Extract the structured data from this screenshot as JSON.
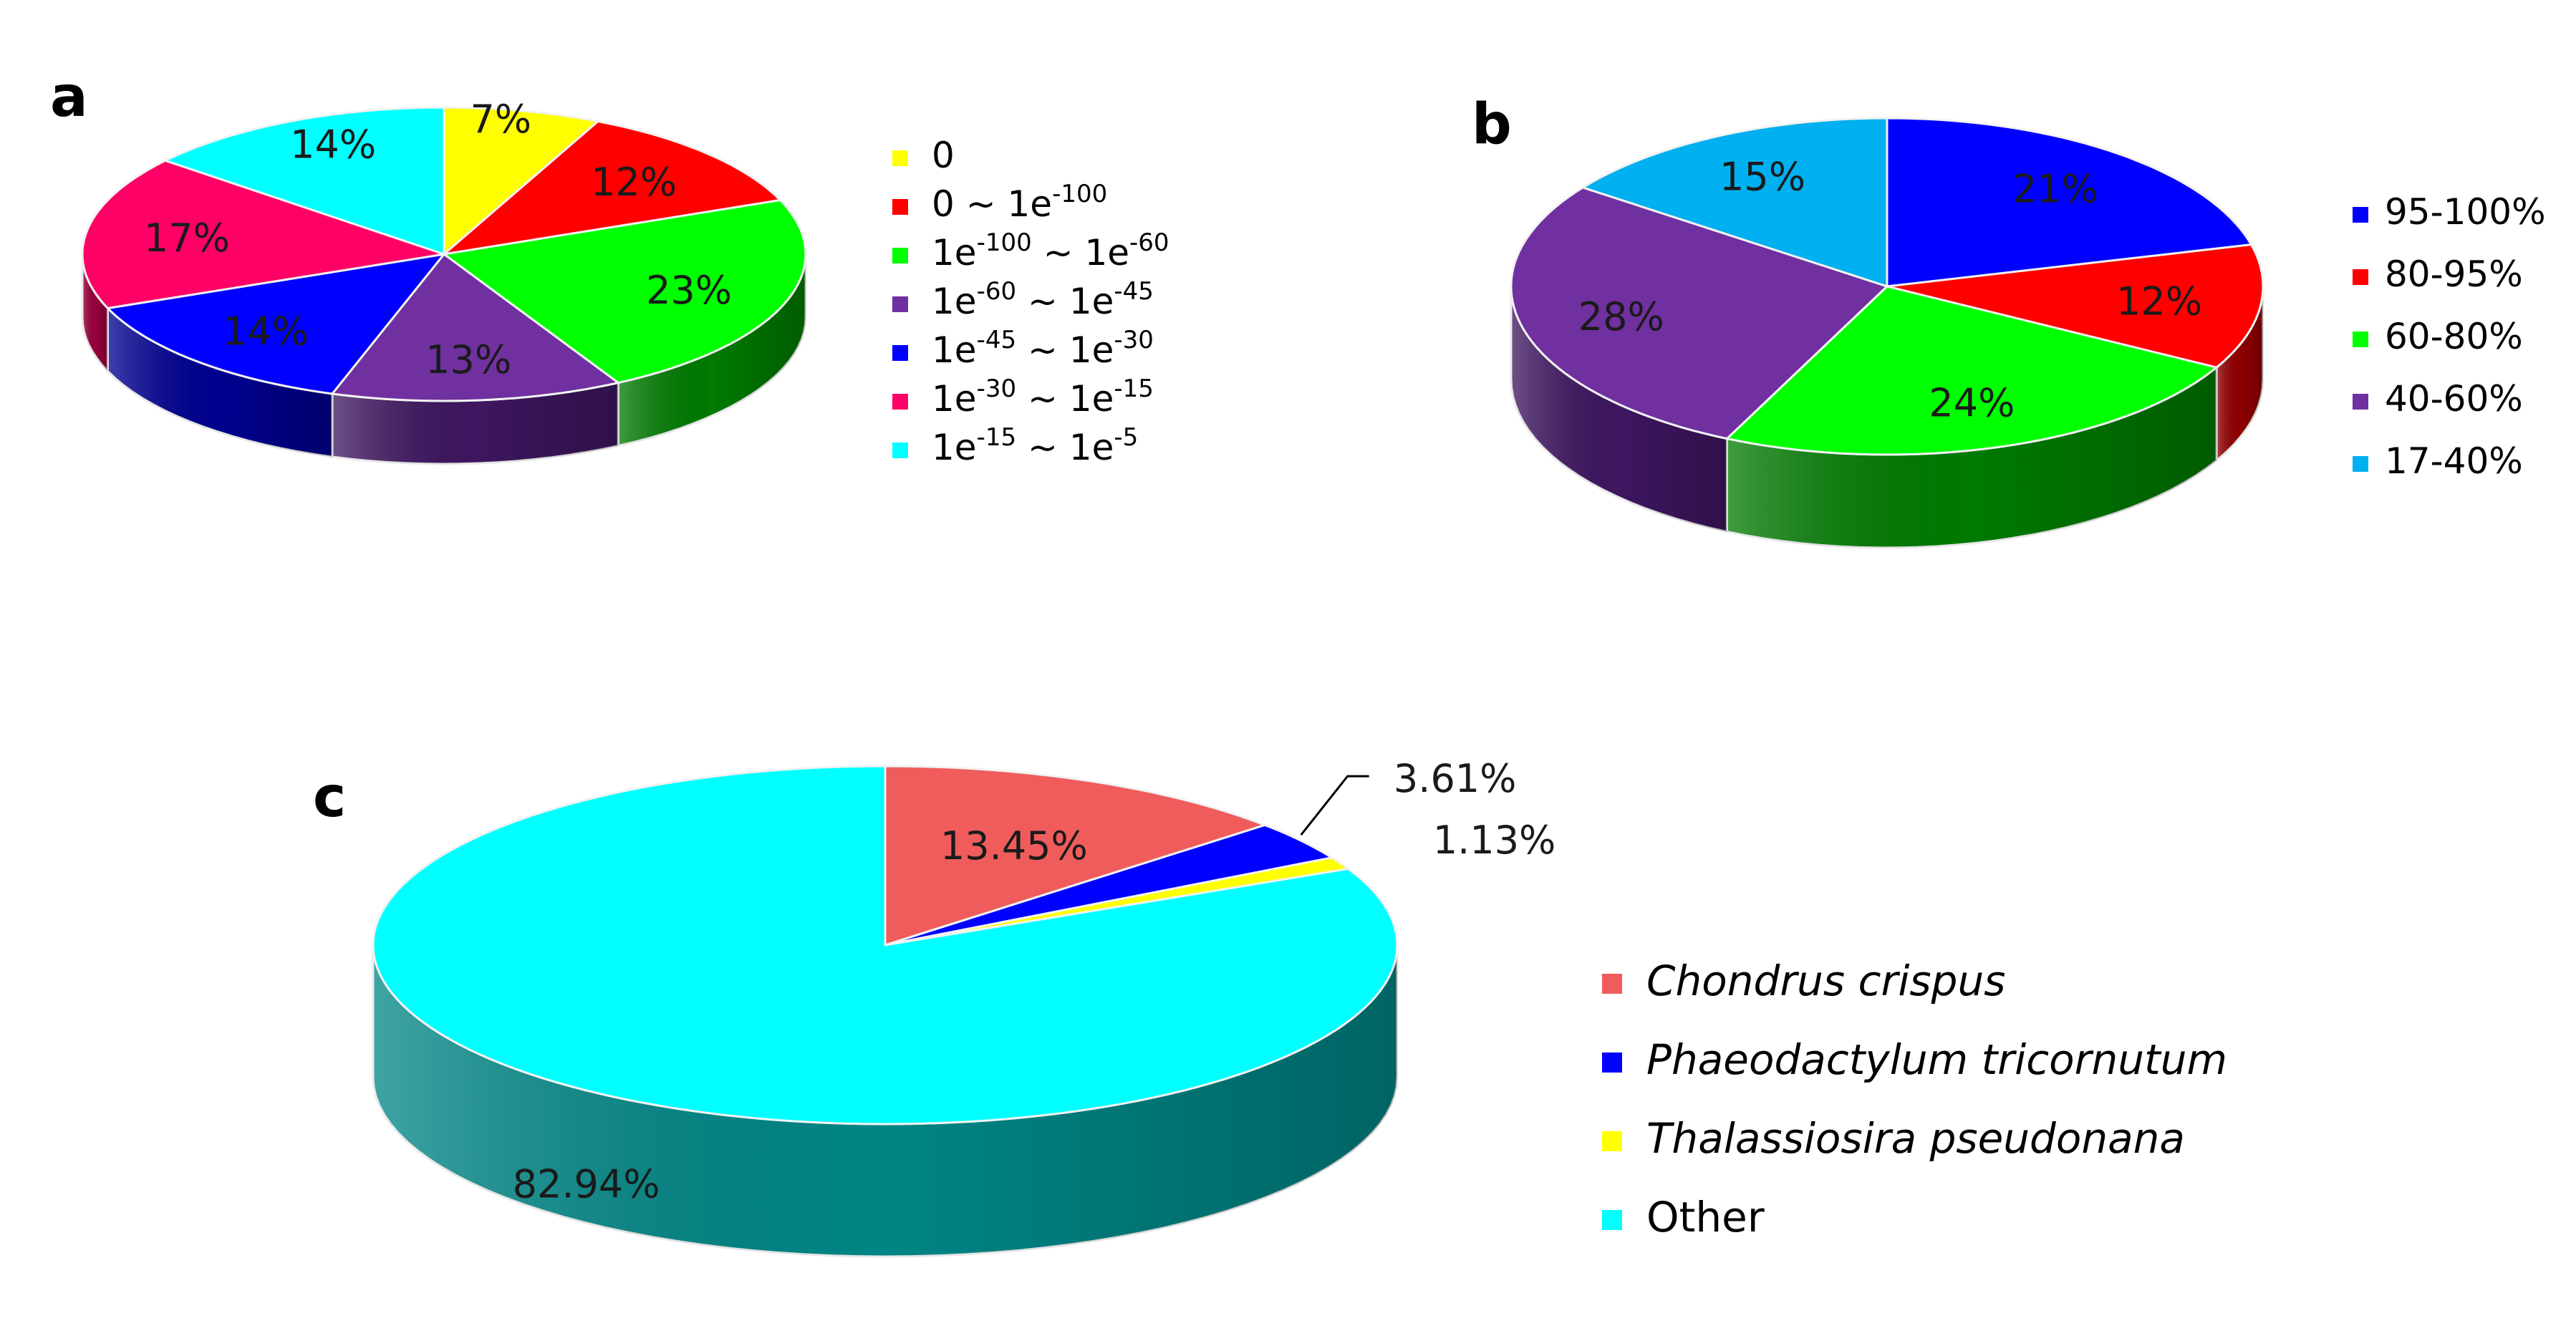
{
  "chart_data": [
    {
      "panel": "a",
      "type": "pie",
      "slices": [
        {
          "legend_base": "0",
          "legend_exp": "",
          "legend_tilde": "",
          "legend_base2": "",
          "legend_exp2": "",
          "label": "7%",
          "value": 7,
          "color": "#ffff00",
          "dark": "#b3b300"
        },
        {
          "legend_base": "0",
          "legend_exp": "",
          "legend_tilde": " ~ ",
          "legend_base2": "1e",
          "legend_exp2": "-100",
          "label": "12%",
          "value": 12,
          "color": "#ff0000",
          "dark": "#900000"
        },
        {
          "legend_base": "1e",
          "legend_exp": "-100",
          "legend_tilde": " ~ ",
          "legend_base2": "1e",
          "legend_exp2": "-60",
          "label": "23%",
          "value": 23,
          "color": "#00ff00",
          "dark": "#007a00"
        },
        {
          "legend_base": "1e",
          "legend_exp": "-60",
          "legend_tilde": " ~ ",
          "legend_base2": "1e",
          "legend_exp2": "-45",
          "label": "13%",
          "value": 13,
          "color": "#7030a0",
          "dark": "#3e1660"
        },
        {
          "legend_base": "1e",
          "legend_exp": "-45",
          "legend_tilde": " ~ ",
          "legend_base2": "1e",
          "legend_exp2": "-30",
          "label": "14%",
          "value": 14,
          "color": "#0000ff",
          "dark": "#000090"
        },
        {
          "legend_base": "1e",
          "legend_exp": "-30",
          "legend_tilde": " ~ ",
          "legend_base2": "1e",
          "legend_exp2": "-15",
          "label": "17%",
          "value": 17,
          "color": "#ff0066",
          "dark": "#99003d"
        },
        {
          "legend_base": "1e",
          "legend_exp": "-15",
          "legend_tilde": " ~ ",
          "legend_base2": "1e",
          "legend_exp2": "-5",
          "label": "14%",
          "value": 14,
          "color": "#00ffff",
          "dark": "#009a9a"
        }
      ]
    },
    {
      "panel": "b",
      "type": "pie",
      "slices": [
        {
          "legend": "95-100%",
          "label": "21%",
          "value": 21,
          "color": "#0000ff",
          "dark": "#000090"
        },
        {
          "legend": "80-95%",
          "label": "12%",
          "value": 12,
          "color": "#ff0000",
          "dark": "#900000"
        },
        {
          "legend": "60-80%",
          "label": "24%",
          "value": 24,
          "color": "#00ff00",
          "dark": "#007a00"
        },
        {
          "legend": "40-60%",
          "label": "28%",
          "value": 28,
          "color": "#7030a0",
          "dark": "#3e1660"
        },
        {
          "legend": "17-40%",
          "label": "15%",
          "value": 15,
          "color": "#00b0f0",
          "dark": "#006890"
        }
      ]
    },
    {
      "panel": "c",
      "type": "pie",
      "slices": [
        {
          "legend": "Chondrus crispus",
          "label": "13.45%",
          "value": 13.45,
          "color": "#f05c5c",
          "dark": "#8a2e2e"
        },
        {
          "legend": "Phaeodactylum tricornutum",
          "label": "3.61%",
          "value": 3.61,
          "color": "#0000ff",
          "dark": "#000090"
        },
        {
          "legend": "Thalassiosira pseudonana",
          "label": "1.13%",
          "value": 1.13,
          "color": "#ffff00",
          "dark": "#b3b300"
        },
        {
          "legend": "Other",
          "label": "82.94%",
          "value": 82.94,
          "color": "#00ffff",
          "dark": "#008585"
        }
      ]
    }
  ]
}
